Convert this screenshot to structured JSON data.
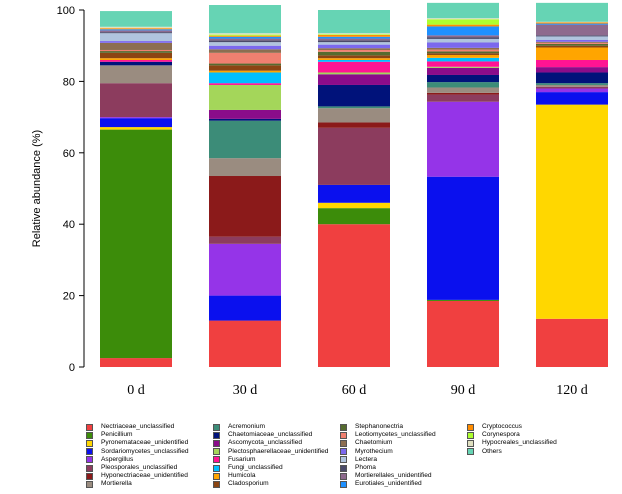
{
  "chart_data": {
    "type": "bar",
    "stacked": true,
    "categories": [
      "0 d",
      "30 d",
      "60 d",
      "90 d",
      "120 d"
    ],
    "ylabel": "Relative abundance (%)",
    "ylim": [
      0,
      100
    ],
    "yticks": [
      0,
      20,
      40,
      60,
      80,
      100
    ],
    "grid": false,
    "legend_position": "bottom",
    "series": [
      {
        "name": "Nectriaceae_unclassified",
        "color": "#f04040",
        "values": [
          2.5,
          13.0,
          40.0,
          18.5,
          13.5
        ]
      },
      {
        "name": "Penicillium",
        "color": "#3c8c0a",
        "values": [
          64.0,
          0.0,
          4.5,
          0.3,
          0.0
        ]
      },
      {
        "name": "Pyronemataceae_unidentified",
        "color": "#ffd700",
        "values": [
          0.7,
          0.0,
          1.5,
          0.0,
          60.0
        ]
      },
      {
        "name": "Sordariomycetes_unclassified",
        "color": "#0a10ee",
        "values": [
          2.5,
          7.0,
          5.0,
          34.5,
          3.5
        ]
      },
      {
        "name": "Aspergillus",
        "color": "#9534e8",
        "values": [
          0.3,
          14.5,
          0.0,
          21.0,
          1.0
        ]
      },
      {
        "name": "Pleosporales_unclassified",
        "color": "#8c3c5e",
        "values": [
          9.5,
          2.0,
          16.0,
          2.0,
          0.5
        ]
      },
      {
        "name": "Hyponectriaceae_unidentified",
        "color": "#8b1a1a",
        "values": [
          0.0,
          17.0,
          1.5,
          0.5,
          0.0
        ]
      },
      {
        "name": "Mortierella",
        "color": "#9a8c80",
        "values": [
          5.0,
          5.0,
          4.0,
          1.5,
          0.5
        ]
      },
      {
        "name": "Acremonium",
        "color": "#3c8c78",
        "values": [
          0.0,
          10.5,
          0.5,
          1.5,
          0.5
        ]
      },
      {
        "name": "Chaetomiaceae_unclassified",
        "color": "#00127a",
        "values": [
          1.0,
          0.5,
          6.0,
          2.0,
          3.0
        ]
      },
      {
        "name": "Ascomycota_unclassified",
        "color": "#8a0c8a",
        "values": [
          0.0,
          2.5,
          3.0,
          2.0,
          1.5
        ]
      },
      {
        "name": "Plectosphaerellaceae_unidentified",
        "color": "#a4d65a",
        "values": [
          0.0,
          7.0,
          0.5,
          0.3,
          0.0
        ]
      },
      {
        "name": "Fusarium",
        "color": "#ff1493",
        "values": [
          0.5,
          0.5,
          3.0,
          1.5,
          2.0
        ]
      },
      {
        "name": "Fungi_unclassified",
        "color": "#00bfff",
        "values": [
          0.0,
          3.0,
          0.5,
          1.0,
          0.0
        ]
      },
      {
        "name": "Humicola",
        "color": "#ffa500",
        "values": [
          0.5,
          0.5,
          0.5,
          0.8,
          3.5
        ]
      },
      {
        "name": "Cladosporium",
        "color": "#8b4513",
        "values": [
          1.5,
          1.5,
          0.8,
          0.5,
          0.5
        ]
      },
      {
        "name": "Stephanonectria",
        "color": "#556b2f",
        "values": [
          0.5,
          0.5,
          1.0,
          0.5,
          0.5
        ]
      },
      {
        "name": "Leotiomycetes_unclassified",
        "color": "#f08070",
        "values": [
          0.3,
          3.0,
          0.5,
          0.5,
          0.3
        ]
      },
      {
        "name": "Chaetomium",
        "color": "#8c6e50",
        "values": [
          2.0,
          1.0,
          0.5,
          0.5,
          0.3
        ]
      },
      {
        "name": "Myrothecium",
        "color": "#7b68ee",
        "values": [
          0.5,
          1.0,
          1.0,
          1.5,
          0.5
        ]
      },
      {
        "name": "Lectera",
        "color": "#b0c4de",
        "values": [
          2.2,
          1.0,
          0.7,
          1.0,
          1.0
        ]
      },
      {
        "name": "Phoma",
        "color": "#4a4a6a",
        "values": [
          0.3,
          0.5,
          0.5,
          0.5,
          0.3
        ]
      },
      {
        "name": "Mortierellales_unidentified",
        "color": "#8e6a8e",
        "values": [
          0.5,
          0.5,
          0.5,
          0.5,
          3.0
        ]
      },
      {
        "name": "Eurotiales_unidentified",
        "color": "#1e90ff",
        "values": [
          0.3,
          0.5,
          0.5,
          2.5,
          0.3
        ]
      },
      {
        "name": "Cryptococcus",
        "color": "#ff8c00",
        "values": [
          0.3,
          0.3,
          0.5,
          0.5,
          0.3
        ]
      },
      {
        "name": "Corynespora",
        "color": "#adff2f",
        "values": [
          0.0,
          0.3,
          0.2,
          1.5,
          0.0
        ]
      },
      {
        "name": "Hypocreales_unclassified",
        "color": "#e0e0c0",
        "values": [
          0.4,
          0.4,
          0.3,
          0.3,
          0.2
        ]
      },
      {
        "name": "Others",
        "color": "#66d4b4",
        "values": [
          4.4,
          7.9,
          6.5,
          4.3,
          5.3
        ]
      }
    ]
  }
}
